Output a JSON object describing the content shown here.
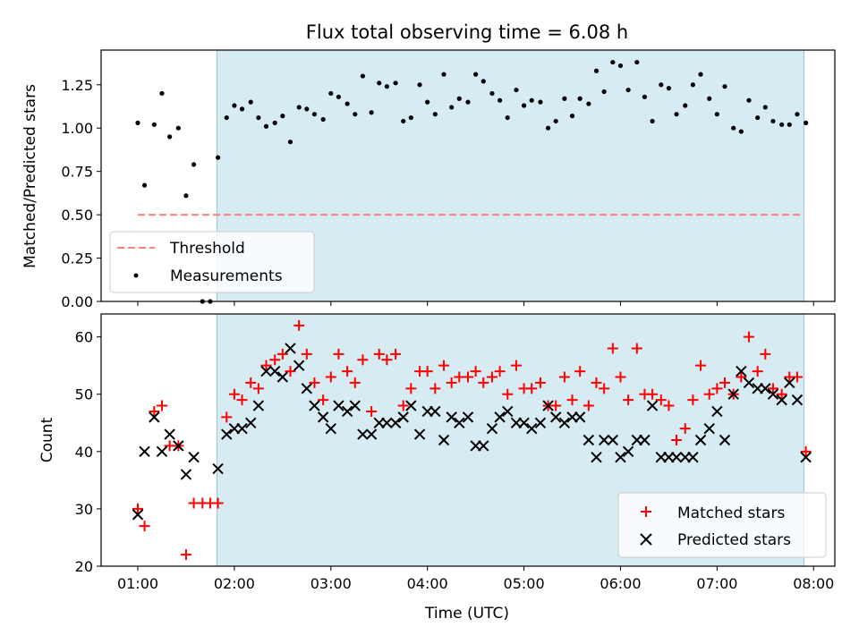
{
  "figure_title": "Flux total observing time = 6.08 h",
  "colors": {
    "shade": "#add8e6",
    "threshold": "#ff7f7f",
    "matched": "#ff0000",
    "predicted": "#000000",
    "measurements": "#000000"
  },
  "chart_data": [
    {
      "type": "scatter",
      "panel": "top",
      "title": "Flux total observing time = 6.08 h",
      "xlabel": "",
      "ylabel": "Matched/Predicted stars",
      "x_unit": "hours UTC",
      "xlim": [
        0.62,
        8.22
      ],
      "ylim": [
        0.0,
        1.45
      ],
      "yticks": [
        0.0,
        0.25,
        0.5,
        0.75,
        1.0,
        1.25
      ],
      "ytick_labels": [
        "0.00",
        "0.25",
        "0.50",
        "0.75",
        "1.00",
        "1.25"
      ],
      "shaded_span": [
        1.82,
        7.9
      ],
      "threshold": {
        "name": "Threshold",
        "y": 0.5,
        "x_range": [
          1.0,
          7.9
        ],
        "style": "dashed"
      },
      "legend": {
        "position": "lower-left",
        "entries": [
          "Threshold",
          "Measurements"
        ]
      },
      "series": [
        {
          "name": "Measurements",
          "marker": "dot",
          "points": [
            [
              1.0,
              1.03
            ],
            [
              1.07,
              0.67
            ],
            [
              1.17,
              1.02
            ],
            [
              1.25,
              1.2
            ],
            [
              1.33,
              0.95
            ],
            [
              1.42,
              1.0
            ],
            [
              1.5,
              0.61
            ],
            [
              1.58,
              0.79
            ],
            [
              1.67,
              0.0
            ],
            [
              1.75,
              0.0
            ],
            [
              1.83,
              0.83
            ],
            [
              1.92,
              1.06
            ],
            [
              2.0,
              1.13
            ],
            [
              2.08,
              1.11
            ],
            [
              2.17,
              1.15
            ],
            [
              2.25,
              1.06
            ],
            [
              2.33,
              1.01
            ],
            [
              2.42,
              1.03
            ],
            [
              2.5,
              1.07
            ],
            [
              2.58,
              0.92
            ],
            [
              2.67,
              1.12
            ],
            [
              2.75,
              1.11
            ],
            [
              2.83,
              1.08
            ],
            [
              2.92,
              1.05
            ],
            [
              3.0,
              1.2
            ],
            [
              3.08,
              1.18
            ],
            [
              3.17,
              1.14
            ],
            [
              3.25,
              1.08
            ],
            [
              3.33,
              1.3
            ],
            [
              3.42,
              1.09
            ],
            [
              3.5,
              1.26
            ],
            [
              3.58,
              1.24
            ],
            [
              3.67,
              1.26
            ],
            [
              3.75,
              1.04
            ],
            [
              3.83,
              1.06
            ],
            [
              3.92,
              1.25
            ],
            [
              4.0,
              1.15
            ],
            [
              4.08,
              1.08
            ],
            [
              4.17,
              1.31
            ],
            [
              4.25,
              1.12
            ],
            [
              4.33,
              1.17
            ],
            [
              4.42,
              1.15
            ],
            [
              4.5,
              1.31
            ],
            [
              4.58,
              1.27
            ],
            [
              4.67,
              1.2
            ],
            [
              4.75,
              1.16
            ],
            [
              4.83,
              1.06
            ],
            [
              4.92,
              1.22
            ],
            [
              5.0,
              1.13
            ],
            [
              5.08,
              1.16
            ],
            [
              5.17,
              1.15
            ],
            [
              5.25,
              1.0
            ],
            [
              5.33,
              1.04
            ],
            [
              5.42,
              1.17
            ],
            [
              5.5,
              1.07
            ],
            [
              5.58,
              1.17
            ],
            [
              5.67,
              1.14
            ],
            [
              5.75,
              1.33
            ],
            [
              5.83,
              1.21
            ],
            [
              5.92,
              1.38
            ],
            [
              6.0,
              1.36
            ],
            [
              6.08,
              1.22
            ],
            [
              6.17,
              1.38
            ],
            [
              6.25,
              1.18
            ],
            [
              6.33,
              1.04
            ],
            [
              6.42,
              1.25
            ],
            [
              6.5,
              1.23
            ],
            [
              6.58,
              1.08
            ],
            [
              6.67,
              1.13
            ],
            [
              6.75,
              1.25
            ],
            [
              6.83,
              1.31
            ],
            [
              6.92,
              1.17
            ],
            [
              7.0,
              1.08
            ],
            [
              7.08,
              1.24
            ],
            [
              7.17,
              1.0
            ],
            [
              7.25,
              0.98
            ],
            [
              7.33,
              1.16
            ],
            [
              7.42,
              1.06
            ],
            [
              7.5,
              1.12
            ],
            [
              7.58,
              1.04
            ],
            [
              7.67,
              1.02
            ],
            [
              7.75,
              1.02
            ],
            [
              7.83,
              1.08
            ],
            [
              7.92,
              1.03
            ]
          ]
        }
      ]
    },
    {
      "type": "scatter",
      "panel": "bottom",
      "title": "",
      "xlabel": "Time (UTC)",
      "ylabel": "Count",
      "x_unit": "hours UTC",
      "xlim": [
        0.62,
        8.22
      ],
      "ylim": [
        20,
        64
      ],
      "xticks": [
        1,
        2,
        3,
        4,
        5,
        6,
        7,
        8
      ],
      "xtick_labels": [
        "01:00",
        "02:00",
        "03:00",
        "04:00",
        "05:00",
        "06:00",
        "07:00",
        "08:00"
      ],
      "yticks": [
        20,
        30,
        40,
        50,
        60
      ],
      "ytick_labels": [
        "20",
        "30",
        "40",
        "50",
        "60"
      ],
      "shaded_span": [
        1.82,
        7.9
      ],
      "legend": {
        "position": "lower-right",
        "entries": [
          "Matched stars",
          "Predicted stars"
        ]
      },
      "series": [
        {
          "name": "Matched stars",
          "marker": "plus",
          "points": [
            [
              1.0,
              30
            ],
            [
              1.07,
              27
            ],
            [
              1.17,
              47
            ],
            [
              1.25,
              48
            ],
            [
              1.33,
              41
            ],
            [
              1.42,
              41
            ],
            [
              1.5,
              22
            ],
            [
              1.58,
              31
            ],
            [
              1.67,
              31
            ],
            [
              1.75,
              31
            ],
            [
              1.83,
              31
            ],
            [
              1.92,
              46
            ],
            [
              2.0,
              50
            ],
            [
              2.08,
              49
            ],
            [
              2.17,
              52
            ],
            [
              2.25,
              51
            ],
            [
              2.33,
              55
            ],
            [
              2.42,
              56
            ],
            [
              2.5,
              57
            ],
            [
              2.58,
              54
            ],
            [
              2.67,
              62
            ],
            [
              2.75,
              57
            ],
            [
              2.83,
              52
            ],
            [
              2.92,
              49
            ],
            [
              3.0,
              53
            ],
            [
              3.08,
              57
            ],
            [
              3.17,
              54
            ],
            [
              3.25,
              52
            ],
            [
              3.33,
              56
            ],
            [
              3.42,
              47
            ],
            [
              3.5,
              57
            ],
            [
              3.58,
              56
            ],
            [
              3.67,
              57
            ],
            [
              3.75,
              48
            ],
            [
              3.83,
              51
            ],
            [
              3.92,
              54
            ],
            [
              4.0,
              54
            ],
            [
              4.08,
              51
            ],
            [
              4.17,
              55
            ],
            [
              4.25,
              52
            ],
            [
              4.33,
              53
            ],
            [
              4.42,
              53
            ],
            [
              4.5,
              54
            ],
            [
              4.58,
              52
            ],
            [
              4.67,
              53
            ],
            [
              4.75,
              54
            ],
            [
              4.83,
              50
            ],
            [
              4.92,
              55
            ],
            [
              5.0,
              51
            ],
            [
              5.08,
              51
            ],
            [
              5.17,
              52
            ],
            [
              5.25,
              48
            ],
            [
              5.33,
              48
            ],
            [
              5.42,
              53
            ],
            [
              5.5,
              49
            ],
            [
              5.58,
              54
            ],
            [
              5.67,
              48
            ],
            [
              5.75,
              52
            ],
            [
              5.83,
              51
            ],
            [
              5.92,
              58
            ],
            [
              6.0,
              53
            ],
            [
              6.08,
              49
            ],
            [
              6.17,
              58
            ],
            [
              6.25,
              50
            ],
            [
              6.33,
              50
            ],
            [
              6.42,
              49
            ],
            [
              6.5,
              48
            ],
            [
              6.58,
              42
            ],
            [
              6.67,
              44
            ],
            [
              6.75,
              49
            ],
            [
              6.83,
              55
            ],
            [
              6.92,
              50
            ],
            [
              7.0,
              51
            ],
            [
              7.08,
              52
            ],
            [
              7.17,
              50
            ],
            [
              7.25,
              53
            ],
            [
              7.33,
              60
            ],
            [
              7.42,
              54
            ],
            [
              7.5,
              57
            ],
            [
              7.58,
              51
            ],
            [
              7.67,
              50
            ],
            [
              7.75,
              53
            ],
            [
              7.83,
              53
            ],
            [
              7.92,
              40
            ]
          ]
        },
        {
          "name": "Predicted stars",
          "marker": "x",
          "points": [
            [
              1.0,
              29
            ],
            [
              1.07,
              40
            ],
            [
              1.17,
              46
            ],
            [
              1.25,
              40
            ],
            [
              1.33,
              43
            ],
            [
              1.42,
              41
            ],
            [
              1.5,
              36
            ],
            [
              1.58,
              39
            ],
            [
              1.83,
              37
            ],
            [
              1.92,
              43
            ],
            [
              2.0,
              44
            ],
            [
              2.08,
              44
            ],
            [
              2.17,
              45
            ],
            [
              2.25,
              48
            ],
            [
              2.33,
              54
            ],
            [
              2.42,
              54
            ],
            [
              2.5,
              53
            ],
            [
              2.58,
              58
            ],
            [
              2.67,
              55
            ],
            [
              2.75,
              51
            ],
            [
              2.83,
              48
            ],
            [
              2.92,
              46
            ],
            [
              3.0,
              44
            ],
            [
              3.08,
              48
            ],
            [
              3.17,
              47
            ],
            [
              3.25,
              48
            ],
            [
              3.33,
              43
            ],
            [
              3.42,
              43
            ],
            [
              3.5,
              45
            ],
            [
              3.58,
              45
            ],
            [
              3.67,
              45
            ],
            [
              3.75,
              46
            ],
            [
              3.83,
              48
            ],
            [
              3.92,
              43
            ],
            [
              4.0,
              47
            ],
            [
              4.08,
              47
            ],
            [
              4.17,
              42
            ],
            [
              4.25,
              46
            ],
            [
              4.33,
              45
            ],
            [
              4.42,
              46
            ],
            [
              4.5,
              41
            ],
            [
              4.58,
              41
            ],
            [
              4.67,
              44
            ],
            [
              4.75,
              46
            ],
            [
              4.83,
              47
            ],
            [
              4.92,
              45
            ],
            [
              5.0,
              45
            ],
            [
              5.08,
              44
            ],
            [
              5.17,
              45
            ],
            [
              5.25,
              48
            ],
            [
              5.33,
              46
            ],
            [
              5.42,
              45
            ],
            [
              5.5,
              46
            ],
            [
              5.58,
              46
            ],
            [
              5.67,
              42
            ],
            [
              5.75,
              39
            ],
            [
              5.83,
              42
            ],
            [
              5.92,
              42
            ],
            [
              6.0,
              39
            ],
            [
              6.08,
              40
            ],
            [
              6.17,
              42
            ],
            [
              6.25,
              42
            ],
            [
              6.33,
              48
            ],
            [
              6.42,
              39
            ],
            [
              6.5,
              39
            ],
            [
              6.58,
              39
            ],
            [
              6.67,
              39
            ],
            [
              6.75,
              39
            ],
            [
              6.83,
              42
            ],
            [
              6.92,
              44
            ],
            [
              7.0,
              47
            ],
            [
              7.08,
              42
            ],
            [
              7.17,
              50
            ],
            [
              7.25,
              54
            ],
            [
              7.33,
              52
            ],
            [
              7.42,
              51
            ],
            [
              7.5,
              51
            ],
            [
              7.58,
              50
            ],
            [
              7.67,
              49
            ],
            [
              7.75,
              52
            ],
            [
              7.83,
              49
            ],
            [
              7.92,
              39
            ]
          ]
        }
      ]
    }
  ]
}
